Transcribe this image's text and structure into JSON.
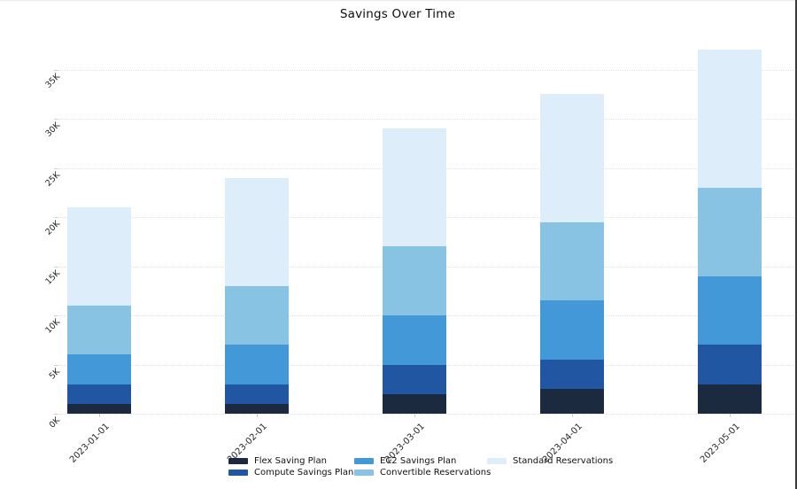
{
  "page": {
    "title": "Savings Over Time"
  },
  "chart_data": {
    "type": "bar",
    "stacked": true,
    "title": "Savings Over Time",
    "categories": [
      "2023-01-01",
      "2023-02-01",
      "2023-03-01",
      "2023-04-01",
      "2023-05-01"
    ],
    "series": [
      {
        "name": "Flex Saving Plan",
        "color": "#1b2a3f",
        "values": [
          1000,
          1000,
          2000,
          2500,
          3000
        ]
      },
      {
        "name": "Compute Savings Plan",
        "color": "#2156a3",
        "values": [
          2000,
          2000,
          3000,
          3000,
          4000
        ]
      },
      {
        "name": "EC2 Savings Plan",
        "color": "#4399d8",
        "values": [
          3000,
          4000,
          5000,
          6000,
          7000
        ]
      },
      {
        "name": "Convertible Reservations",
        "color": "#88c3e4",
        "values": [
          5000,
          6000,
          7000,
          8000,
          9000
        ]
      },
      {
        "name": "Standard Reservations",
        "color": "#ddedfa",
        "values": [
          10000,
          11000,
          12000,
          13000,
          14000
        ]
      }
    ],
    "totals": [
      21000,
      24000,
      29000,
      32500,
      37000
    ],
    "y_axis": {
      "min": 0,
      "max": 37500,
      "tick_step": 5000,
      "tick_labels": [
        "0K",
        "5K",
        "10K",
        "15K",
        "20K",
        "25K",
        "30K",
        "35K"
      ]
    },
    "x_axis": {
      "tick_rotation_deg": 45
    },
    "legend_position": "bottom",
    "grid": "horizontal-dotted",
    "background_color": "#ffffff",
    "gridline_color": "#e2e2e2"
  }
}
